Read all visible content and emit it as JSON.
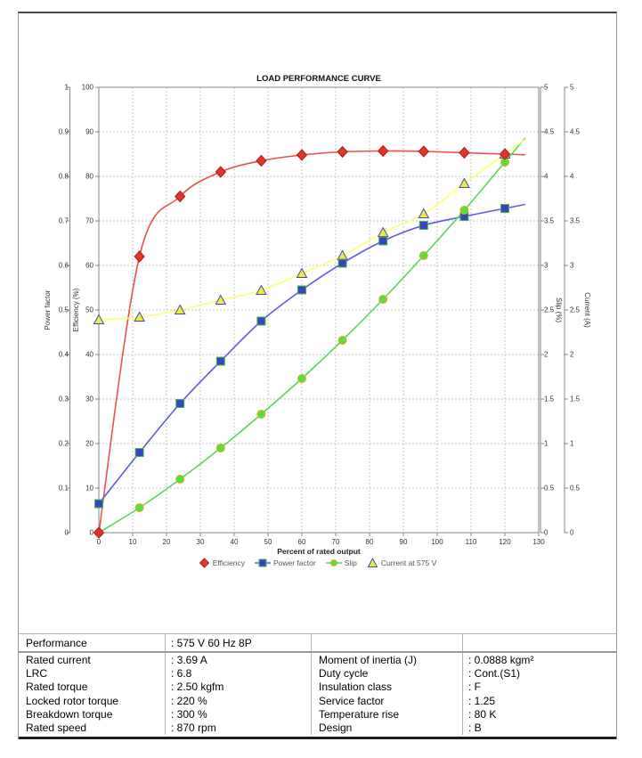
{
  "chart_data": {
    "type": "line",
    "title": "LOAD PERFORMANCE CURVE",
    "xlabel": "Percent of rated output",
    "x": [
      0,
      12,
      24,
      36,
      48,
      60,
      72,
      84,
      96,
      108,
      120
    ],
    "xlim": [
      0,
      130
    ],
    "xtick_step": 10,
    "grid": "dashed",
    "legend_position": "bottom",
    "axes": {
      "power_factor": {
        "label": "Power factor",
        "lim": [
          0,
          1
        ],
        "step": 0.1
      },
      "efficiency": {
        "label": "Efficiency (%)",
        "lim": [
          0,
          100
        ],
        "step": 10
      },
      "slip": {
        "label": "Slip (%)",
        "lim": [
          0,
          5
        ],
        "step": 0.5
      },
      "current": {
        "label": "Current (A)",
        "lim": [
          0,
          5
        ],
        "step": 0.5
      }
    },
    "series": [
      {
        "name": "Efficiency",
        "axis": "efficiency",
        "marker": "diamond",
        "line_color": "#ee5047",
        "marker_fill": "#e6332a",
        "marker_stroke": "#a81f17",
        "values": [
          0,
          62,
          75.5,
          81,
          83.5,
          84.8,
          85.5,
          85.7,
          85.6,
          85.3,
          85.0
        ]
      },
      {
        "name": "Power factor",
        "axis": "power_factor",
        "marker": "square",
        "line_color": "#5c5cdb",
        "marker_fill": "#3944c4",
        "marker_stroke": "#43b943",
        "values": [
          0.065,
          0.18,
          0.29,
          0.385,
          0.475,
          0.545,
          0.605,
          0.655,
          0.69,
          0.71,
          0.728
        ]
      },
      {
        "name": "Slip",
        "axis": "slip",
        "marker": "circle",
        "line_color": "#57d657",
        "marker_fill": "#52e23b",
        "marker_stroke": "#eda421",
        "values": [
          0,
          0.28,
          0.6,
          0.95,
          1.33,
          1.73,
          2.16,
          2.62,
          3.11,
          3.62,
          4.16
        ]
      },
      {
        "name": "Current at 575 V",
        "axis": "current",
        "marker": "triangle",
        "line_color": "#ffff6e",
        "marker_fill": "#f0ec3d",
        "marker_stroke": "#4545cc",
        "values": [
          2.39,
          2.42,
          2.5,
          2.61,
          2.72,
          2.91,
          3.11,
          3.37,
          3.58,
          3.92,
          4.25
        ]
      }
    ]
  },
  "table": {
    "performance": {
      "label": "Performance",
      "value": ": 575 V 60 Hz 8P"
    },
    "left": [
      {
        "label": "Rated current",
        "value": ": 3.69 A"
      },
      {
        "label": "LRC",
        "value": ": 6.8"
      },
      {
        "label": "Rated torque",
        "value": ": 2.50 kgfm"
      },
      {
        "label": "Locked rotor torque",
        "value": ": 220 %"
      },
      {
        "label": "Breakdown torque",
        "value": ": 300 %"
      },
      {
        "label": "Rated speed",
        "value": ": 870 rpm"
      }
    ],
    "right": [
      {
        "label": "Moment of inertia (J)",
        "value": ": 0.0888 kgm²"
      },
      {
        "label": "Duty cycle",
        "value": ": Cont.(S1)"
      },
      {
        "label": "Insulation class",
        "value": ": F"
      },
      {
        "label": "Service factor",
        "value": ": 1.25"
      },
      {
        "label": "Temperature rise",
        "value": ": 80 K"
      },
      {
        "label": "Design",
        "value": ": B"
      }
    ]
  }
}
